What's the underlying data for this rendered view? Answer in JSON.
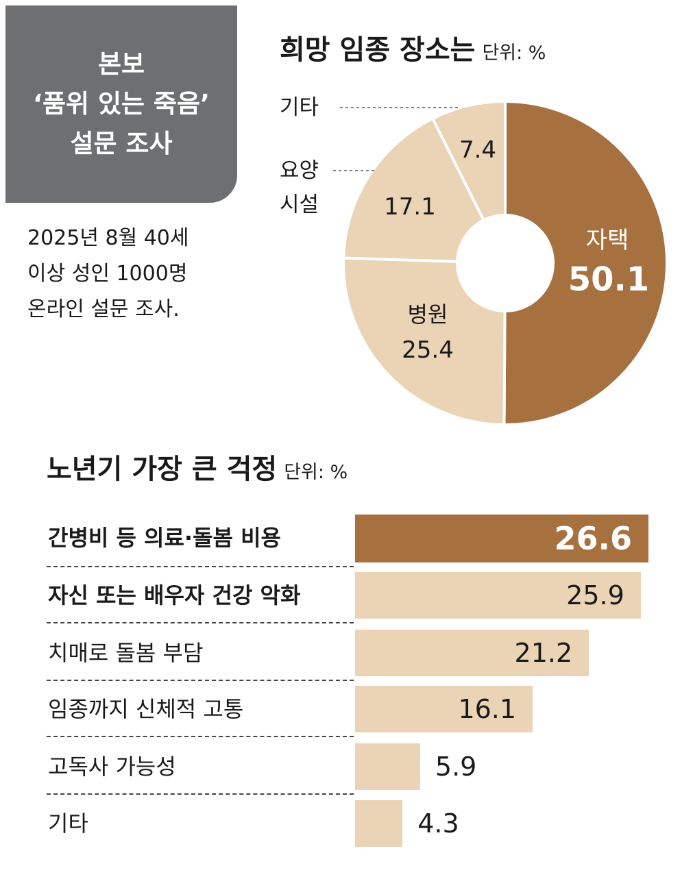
{
  "badge": {
    "line1": "본보",
    "line2": "‘품위 있는 죽음’",
    "line3": "설문 조사"
  },
  "survey_note": {
    "line1": "2025년 8월 40세",
    "line2": "이상 성인 1000명",
    "line3": "온라인 설문 조사."
  },
  "colors": {
    "accent_dark": "#a6703f",
    "accent_light": "#ebd3b6",
    "badge_gray": "#6e6f71"
  },
  "chart_data": [
    {
      "type": "pie",
      "title": "희망 임종 장소는",
      "unit": "단위: %",
      "categories": [
        "자택",
        "병원",
        "요양 시설",
        "기타"
      ],
      "values": [
        50.1,
        25.4,
        17.1,
        7.4
      ],
      "highlight": "자택"
    },
    {
      "type": "bar",
      "orientation": "horizontal",
      "title": "노년기 가장 큰 걱정",
      "unit": "단위: %",
      "categories": [
        "간병비 등 의료·돌봄 비용",
        "자신 또는 배우자 건강 악화",
        "치매로 돌봄 부담",
        "임종까지 신체적 고통",
        "고독사 가능성",
        "기타"
      ],
      "values": [
        26.6,
        25.9,
        21.2,
        16.1,
        5.9,
        4.3
      ],
      "highlight": "간병비 등 의료·돌봄 비용"
    }
  ]
}
